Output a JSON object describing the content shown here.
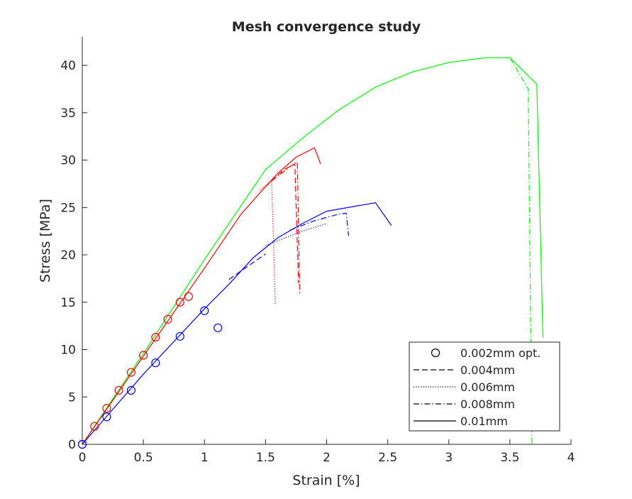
{
  "chart_data": {
    "type": "line",
    "title": "Mesh convergence study",
    "xlabel": "Strain [%]",
    "ylabel": "Stress [MPa]",
    "xlim": [
      0,
      4
    ],
    "ylim": [
      0,
      43
    ],
    "xticks": [
      0,
      0.5,
      1,
      1.5,
      2,
      2.5,
      3,
      3.5,
      4
    ],
    "xtick_labels": [
      "0",
      "0.5",
      "1",
      "1.5",
      "2",
      "2.5",
      "3",
      "3.5",
      "4"
    ],
    "yticks": [
      0,
      5,
      10,
      15,
      20,
      25,
      30,
      35,
      40
    ],
    "ytick_labels": [
      "0",
      "5",
      "10",
      "15",
      "20",
      "25",
      "30",
      "35",
      "40"
    ],
    "grid": false,
    "legend": {
      "placement": "bottom-right",
      "entries": [
        {
          "label": "0.002mm opt.",
          "style": "circle"
        },
        {
          "label": "0.004mm",
          "style": "dashed"
        },
        {
          "label": "0.006mm",
          "style": "dotted"
        },
        {
          "label": "0.008mm",
          "style": "dashdot"
        },
        {
          "label": "0.01mm",
          "style": "solid"
        }
      ]
    },
    "colors": {
      "blue": "#0000ff",
      "red": "#ff0000",
      "green": "#00ff00",
      "black": "#000000"
    },
    "series": [
      {
        "color": "green",
        "style": "solid",
        "points": [
          [
            0,
            0
          ],
          [
            0.5,
            9.6
          ],
          [
            1,
            19.5
          ],
          [
            1.5,
            29
          ],
          [
            1.8,
            32.3
          ],
          [
            2.1,
            35.3
          ],
          [
            2.4,
            37.7
          ],
          [
            2.7,
            39.3
          ],
          [
            3.0,
            40.3
          ],
          [
            3.3,
            40.8
          ],
          [
            3.5,
            40.8
          ],
          [
            3.72,
            38
          ],
          [
            3.77,
            11.3
          ]
        ]
      },
      {
        "color": "green",
        "style": "dashdot",
        "points": [
          [
            3.5,
            40.8
          ],
          [
            3.65,
            37.5
          ],
          [
            3.68,
            0
          ]
        ]
      },
      {
        "color": "red",
        "style": "solid",
        "points": [
          [
            0,
            0
          ],
          [
            0.5,
            9.3
          ],
          [
            1,
            18.6
          ],
          [
            1.3,
            24.3
          ],
          [
            1.5,
            27.2
          ],
          [
            1.6,
            28.6
          ],
          [
            1.75,
            30.3
          ],
          [
            1.9,
            31.3
          ],
          [
            1.95,
            29.6
          ]
        ]
      },
      {
        "color": "red",
        "style": "dashed",
        "points": [
          [
            1.5,
            27.2
          ],
          [
            1.65,
            29
          ],
          [
            1.74,
            29.6
          ],
          [
            1.77,
            17
          ]
        ]
      },
      {
        "color": "red",
        "style": "dotted",
        "points": [
          [
            1.45,
            26.8
          ],
          [
            1.55,
            27.8
          ],
          [
            1.58,
            14.8
          ]
        ]
      },
      {
        "color": "red",
        "style": "dashdot",
        "points": [
          [
            1.55,
            27.8
          ],
          [
            1.7,
            29.3
          ],
          [
            1.76,
            29.8
          ],
          [
            1.78,
            15.9
          ]
        ]
      },
      {
        "color": "blue",
        "style": "solid",
        "points": [
          [
            0,
            0
          ],
          [
            0.5,
            7.4
          ],
          [
            1,
            14.3
          ],
          [
            1.2,
            16.9
          ],
          [
            1.4,
            19.7
          ],
          [
            1.6,
            21.8
          ],
          [
            1.8,
            23.3
          ],
          [
            2.0,
            24.6
          ],
          [
            2.4,
            25.5
          ],
          [
            2.53,
            23.1
          ]
        ]
      },
      {
        "color": "blue",
        "style": "dashed",
        "points": [
          [
            1.2,
            17.4
          ],
          [
            1.5,
            20.1
          ]
        ]
      },
      {
        "color": "blue",
        "style": "dotted",
        "points": [
          [
            1.5,
            21
          ],
          [
            1.8,
            22.5
          ],
          [
            2.0,
            23.3
          ]
        ]
      },
      {
        "color": "blue",
        "style": "dashdot",
        "points": [
          [
            1.7,
            22.6
          ],
          [
            1.9,
            23.6
          ],
          [
            2.1,
            24.3
          ],
          [
            2.16,
            24.4
          ],
          [
            2.18,
            22
          ]
        ]
      }
    ],
    "markers": [
      {
        "color": "red",
        "points": [
          [
            0,
            0
          ],
          [
            0.1,
            1.9
          ],
          [
            0.2,
            3.8
          ],
          [
            0.3,
            5.7
          ],
          [
            0.4,
            7.6
          ],
          [
            0.5,
            9.4
          ],
          [
            0.6,
            11.3
          ],
          [
            0.7,
            13.2
          ],
          [
            0.8,
            15.0
          ],
          [
            0.87,
            15.6
          ]
        ]
      },
      {
        "color": "blue",
        "points": [
          [
            0,
            0
          ],
          [
            0.2,
            2.9
          ],
          [
            0.4,
            5.7
          ],
          [
            0.6,
            8.6
          ],
          [
            0.8,
            11.4
          ],
          [
            1.0,
            14.1
          ],
          [
            1.11,
            12.3
          ]
        ]
      }
    ]
  }
}
